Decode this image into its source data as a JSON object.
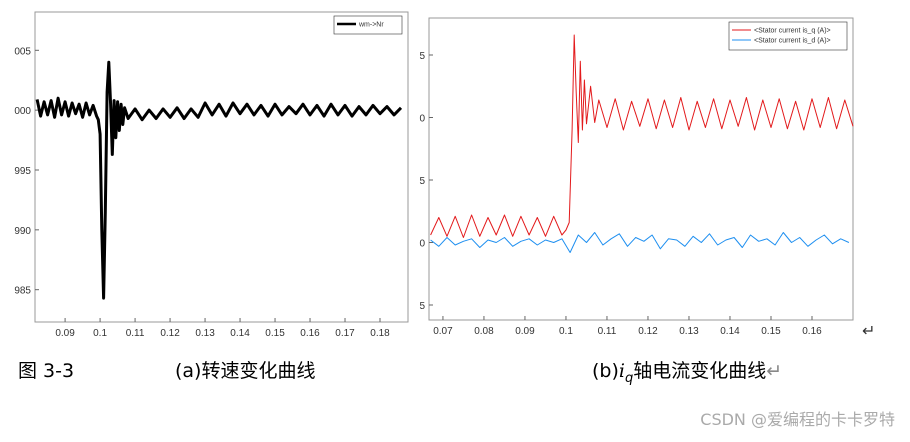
{
  "chart_data": [
    {
      "type": "line",
      "legend": "top-right",
      "grid": false,
      "xlim": [
        0.0814,
        0.188
      ],
      "ylim": [
        982.3,
        1008.2
      ],
      "xticks": [
        0.09,
        0.1,
        0.11,
        0.12,
        0.13,
        0.14,
        0.15,
        0.16,
        0.17,
        0.18
      ],
      "yticks": [
        {
          "value": 1005,
          "label": "005"
        },
        {
          "value": 1000,
          "label": "000"
        },
        995,
        990,
        985
      ],
      "series": [
        {
          "name": "wm->Nr",
          "color": "#000000",
          "width": 3,
          "x": [
            0.082,
            0.083,
            0.084,
            0.085,
            0.086,
            0.087,
            0.088,
            0.089,
            0.09,
            0.091,
            0.092,
            0.093,
            0.094,
            0.095,
            0.096,
            0.097,
            0.098,
            0.099,
            0.0995,
            0.1,
            0.1005,
            0.101,
            0.1015,
            0.102,
            0.1025,
            0.103,
            0.1035,
            0.104,
            0.1045,
            0.105,
            0.1055,
            0.106,
            0.1065,
            0.107,
            0.108,
            0.11,
            0.112,
            0.114,
            0.116,
            0.118,
            0.12,
            0.122,
            0.124,
            0.126,
            0.128,
            0.13,
            0.132,
            0.134,
            0.136,
            0.138,
            0.14,
            0.142,
            0.144,
            0.146,
            0.148,
            0.15,
            0.152,
            0.154,
            0.156,
            0.158,
            0.16,
            0.162,
            0.164,
            0.166,
            0.168,
            0.17,
            0.172,
            0.174,
            0.176,
            0.178,
            0.18,
            0.182,
            0.184,
            0.186
          ],
          "values": [
            1000.9,
            999.5,
            1000.7,
            999.6,
            1000.8,
            999.4,
            1001.0,
            999.6,
            1000.7,
            999.5,
            1000.6,
            999.7,
            1000.5,
            999.4,
            1000.6,
            999.6,
            1000.4,
            999.5,
            999.2,
            998.0,
            990.0,
            984.3,
            991.5,
            1001.5,
            1004.0,
            1000.5,
            996.3,
            1000.8,
            997.7,
            1000.7,
            998.3,
            1000.5,
            998.8,
            1000.2,
            999.3,
            1000.1,
            999.2,
            1000.0,
            999.3,
            1000.1,
            999.4,
            1000.2,
            999.3,
            1000.1,
            999.4,
            1000.6,
            999.6,
            1000.5,
            999.5,
            1000.6,
            999.7,
            1000.5,
            999.6,
            1000.4,
            999.5,
            1000.5,
            999.6,
            1000.3,
            999.7,
            1000.5,
            999.6,
            1000.4,
            999.5,
            1000.5,
            999.6,
            1000.4,
            999.5,
            1000.3,
            999.6,
            1000.4,
            999.7,
            1000.3,
            999.6,
            1000.2
          ]
        }
      ]
    },
    {
      "type": "line",
      "legend": "top-right",
      "grid": false,
      "xlim": [
        0.0666,
        0.17
      ],
      "ylim": [
        -6.2,
        17.96
      ],
      "xticks": [
        0.07,
        0.08,
        0.09,
        0.1,
        0.11,
        0.12,
        0.13,
        0.14,
        0.15,
        0.16
      ],
      "yticks": [
        {
          "value": 15,
          "label": "5"
        },
        {
          "value": 10,
          "label": "0"
        },
        5,
        0,
        {
          "value": -5,
          "label": "5"
        }
      ],
      "series": [
        {
          "name": "<Stator current is_q (A)>",
          "color": "#e31a1c",
          "width": 1,
          "x": [
            0.067,
            0.069,
            0.071,
            0.073,
            0.075,
            0.077,
            0.079,
            0.081,
            0.083,
            0.085,
            0.087,
            0.089,
            0.091,
            0.093,
            0.095,
            0.097,
            0.099,
            0.1,
            0.1008,
            0.1015,
            0.102,
            0.1025,
            0.103,
            0.1035,
            0.104,
            0.1045,
            0.105,
            0.106,
            0.107,
            0.108,
            0.11,
            0.112,
            0.114,
            0.116,
            0.118,
            0.12,
            0.122,
            0.124,
            0.126,
            0.128,
            0.13,
            0.132,
            0.134,
            0.136,
            0.138,
            0.14,
            0.142,
            0.144,
            0.146,
            0.148,
            0.15,
            0.152,
            0.154,
            0.156,
            0.158,
            0.16,
            0.162,
            0.164,
            0.166,
            0.168,
            0.17
          ],
          "values": [
            0.6,
            2.0,
            0.5,
            2.1,
            0.4,
            2.2,
            0.5,
            2.0,
            0.6,
            2.2,
            0.5,
            2.1,
            0.6,
            2.0,
            0.5,
            2.1,
            0.6,
            1.0,
            1.6,
            9.0,
            16.6,
            12.0,
            8.0,
            14.5,
            9.0,
            13.0,
            9.5,
            12.5,
            9.6,
            11.4,
            9.2,
            11.5,
            9.0,
            11.3,
            9.3,
            11.5,
            9.1,
            11.4,
            9.2,
            11.6,
            9.0,
            11.3,
            9.2,
            11.5,
            9.1,
            11.4,
            9.3,
            11.6,
            9.0,
            11.4,
            9.2,
            11.5,
            9.1,
            11.3,
            9.0,
            11.5,
            9.2,
            11.6,
            9.1,
            11.4,
            9.3
          ]
        },
        {
          "name": "<Stator current is_d (A)>",
          "color": "#1e8ff0",
          "width": 1,
          "x": [
            0.067,
            0.069,
            0.071,
            0.073,
            0.075,
            0.077,
            0.079,
            0.081,
            0.083,
            0.085,
            0.087,
            0.089,
            0.091,
            0.093,
            0.095,
            0.097,
            0.099,
            0.101,
            0.103,
            0.105,
            0.107,
            0.109,
            0.111,
            0.113,
            0.115,
            0.117,
            0.119,
            0.121,
            0.123,
            0.125,
            0.127,
            0.129,
            0.131,
            0.133,
            0.135,
            0.137,
            0.139,
            0.141,
            0.143,
            0.145,
            0.147,
            0.149,
            0.151,
            0.153,
            0.155,
            0.157,
            0.159,
            0.161,
            0.163,
            0.165,
            0.167,
            0.169
          ],
          "values": [
            0.2,
            -0.3,
            0.4,
            -0.2,
            0.1,
            0.3,
            -0.4,
            0.2,
            0.0,
            0.4,
            -0.3,
            0.1,
            0.3,
            -0.2,
            0.2,
            0.0,
            0.3,
            -0.8,
            0.6,
            0.0,
            0.8,
            -0.2,
            0.3,
            0.7,
            -0.3,
            0.4,
            0.1,
            0.6,
            -0.5,
            0.3,
            0.2,
            -0.3,
            0.5,
            0.0,
            0.7,
            -0.2,
            0.2,
            0.4,
            -0.4,
            0.6,
            0.1,
            0.3,
            -0.2,
            0.8,
            0.0,
            0.4,
            -0.3,
            0.2,
            0.6,
            -0.1,
            0.3,
            0.0
          ]
        }
      ]
    }
  ],
  "captions": {
    "figure": "图 3-3",
    "a": "(a)转速变化曲线",
    "b_prefix": "(b)",
    "b_var": "i",
    "b_sub": "q",
    "b_rest": "轴电流变化曲线",
    "return_mark": "↵",
    "watermark": "CSDN @爱编程的卡卡罗特"
  }
}
